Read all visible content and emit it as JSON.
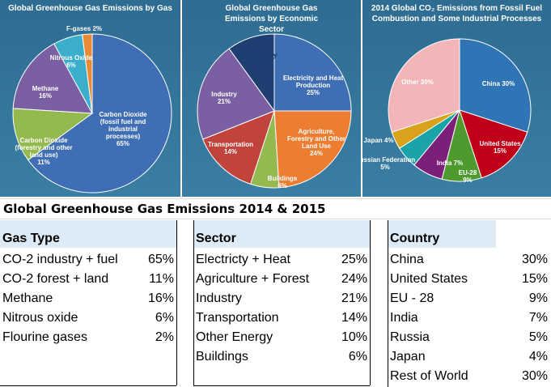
{
  "chart_data": [
    {
      "type": "pie",
      "title": "Global Greenhouse Gas Emissions by Gas",
      "slices": [
        {
          "label": "Carbon Dioxide",
          "sublabel": "(fossil fuel and industrial processes)",
          "value": 65,
          "value_label": "65%",
          "color": "#3f6eb5"
        },
        {
          "label": "Carbon Dioxide",
          "sublabel": "(forestry and other land use)",
          "value": 11,
          "value_label": "11%",
          "color": "#93b94f"
        },
        {
          "label": "Methane",
          "value": 16,
          "value_label": "16%",
          "color": "#7a5fa3"
        },
        {
          "label": "Nitrous Oxide",
          "value": 6,
          "value_label": "6%",
          "color": "#3aaecb"
        },
        {
          "label": "F-gases",
          "value": 2,
          "value_label": "2%",
          "color": "#ea8a35"
        }
      ]
    },
    {
      "type": "pie",
      "title": "Global Greenhouse Gas Emissions by Economic Sector",
      "slices": [
        {
          "label": "Electricity and Heat Production",
          "value": 25,
          "value_label": "25%",
          "color": "#3f6eb5"
        },
        {
          "label": "Agriculture, Forestry and Other Land Use",
          "value": 24,
          "value_label": "24%",
          "color": "#ed7d31"
        },
        {
          "label": "Buildings",
          "value": 6,
          "value_label": "6%",
          "color": "#93b94f"
        },
        {
          "label": "Transportation",
          "value": 14,
          "value_label": "14%",
          "color": "#c0443c"
        },
        {
          "label": "Industry",
          "value": 21,
          "value_label": "21%",
          "color": "#7a5fa3"
        },
        {
          "label": "Other Energy",
          "value": 10,
          "value_label": "10%",
          "color": "#1f3f73"
        }
      ]
    },
    {
      "type": "pie",
      "title": "2014 Global CO₂ Emissions from Fossil Fuel Combustion and Some Industrial Processes",
      "slices": [
        {
          "label": "China",
          "value": 30,
          "value_label": "30%",
          "color": "#2f75b5"
        },
        {
          "label": "United States",
          "value": 15,
          "value_label": "15%",
          "color": "#c00018"
        },
        {
          "label": "EU-28",
          "value": 9,
          "value_label": "9%",
          "color": "#4f9a2f"
        },
        {
          "label": "India",
          "value": 7,
          "value_label": "7%",
          "color": "#7b1f7b"
        },
        {
          "label": "Russian Federation",
          "value": 5,
          "value_label": "5%",
          "color": "#1aa3a8"
        },
        {
          "label": "Japan",
          "value": 4,
          "value_label": "4%",
          "color": "#d9a21b"
        },
        {
          "label": "Other",
          "value": 30,
          "value_label": "30%",
          "color": "#f2b5b8"
        }
      ]
    }
  ],
  "table_title": "Global Greenhouse Gas Emissions 2014 & 2015",
  "tables": {
    "gas": {
      "header": "Gas Type",
      "rows": [
        {
          "name": "CO-2 industry + fuel",
          "value": "65%"
        },
        {
          "name": "CO-2 forest + land",
          "value": "11%"
        },
        {
          "name": "Methane",
          "value": "16%"
        },
        {
          "name": "Nitrous oxide",
          "value": "6%"
        },
        {
          "name": "Flourine  gases",
          "value": "2%"
        }
      ]
    },
    "sector": {
      "header": "Sector",
      "rows": [
        {
          "name": "Electricty + Heat",
          "value": "25%"
        },
        {
          "name": "Agriculture + Forest",
          "value": "24%"
        },
        {
          "name": "Industry",
          "value": "21%"
        },
        {
          "name": "Transportation",
          "value": "14%"
        },
        {
          "name": "Other Energy",
          "value": "10%"
        },
        {
          "name": "Buildings",
          "value": "6%"
        }
      ]
    },
    "country": {
      "header": "Country",
      "rows": [
        {
          "name": "China",
          "value": "30%"
        },
        {
          "name": "United States",
          "value": "15%"
        },
        {
          "name": "EU - 28",
          "value": "9%"
        },
        {
          "name": "India",
          "value": "7%"
        },
        {
          "name": "Russia",
          "value": "5%"
        },
        {
          "name": "Japan",
          "value": "4%"
        },
        {
          "name": "Rest of World",
          "value": "30%"
        }
      ]
    }
  },
  "colors": {
    "panel_background": "#336f95",
    "table_header_fill": "#ddebf7"
  }
}
